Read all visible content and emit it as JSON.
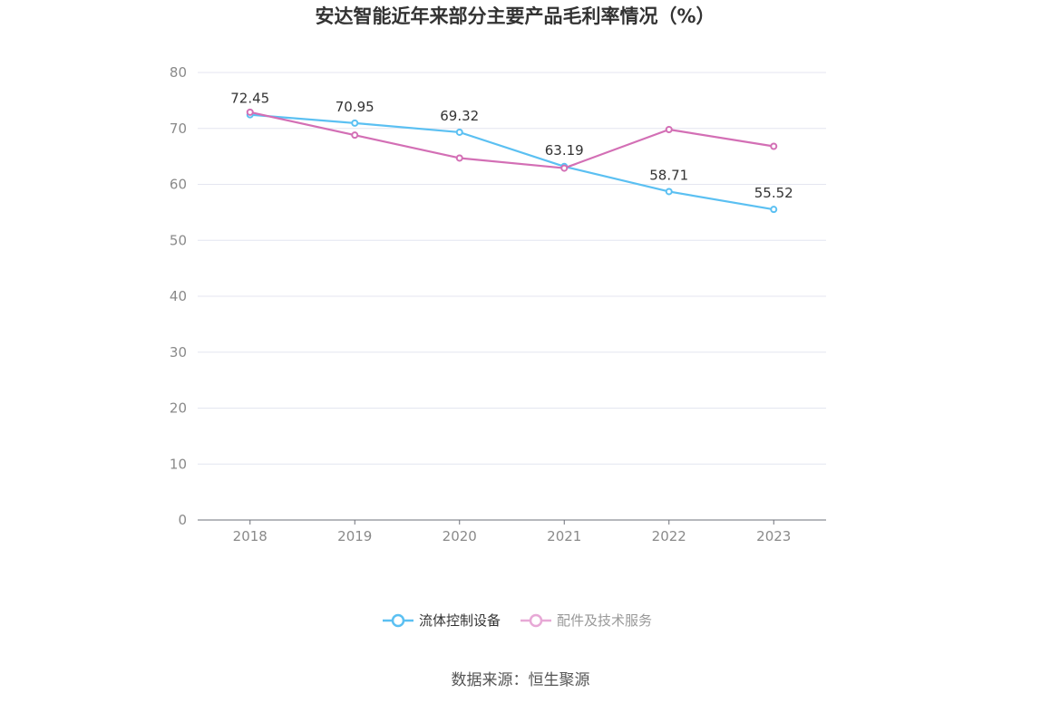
{
  "chart_data": {
    "type": "line",
    "title": "安达智能近年来部分主要产品毛利率情况（%）",
    "categories": [
      "2018",
      "2019",
      "2020",
      "2021",
      "2022",
      "2023"
    ],
    "ylim": [
      0,
      80
    ],
    "yticks": [
      0,
      10,
      20,
      30,
      40,
      50,
      60,
      70,
      80
    ],
    "grid": true,
    "legend_position": "bottom",
    "series": [
      {
        "name": "流体控制设备",
        "color": "#5bc0f2",
        "values": [
          72.45,
          70.95,
          69.32,
          63.19,
          58.71,
          55.52
        ],
        "labels": [
          "72.45",
          "70.95",
          "69.32",
          "63.19",
          "58.71",
          "55.52"
        ]
      },
      {
        "name": "配件及技术服务",
        "color": "#d36fb5",
        "values": [
          72.9,
          68.8,
          64.7,
          62.9,
          69.8,
          66.8
        ]
      }
    ]
  },
  "source": "数据来源：恒生聚源"
}
